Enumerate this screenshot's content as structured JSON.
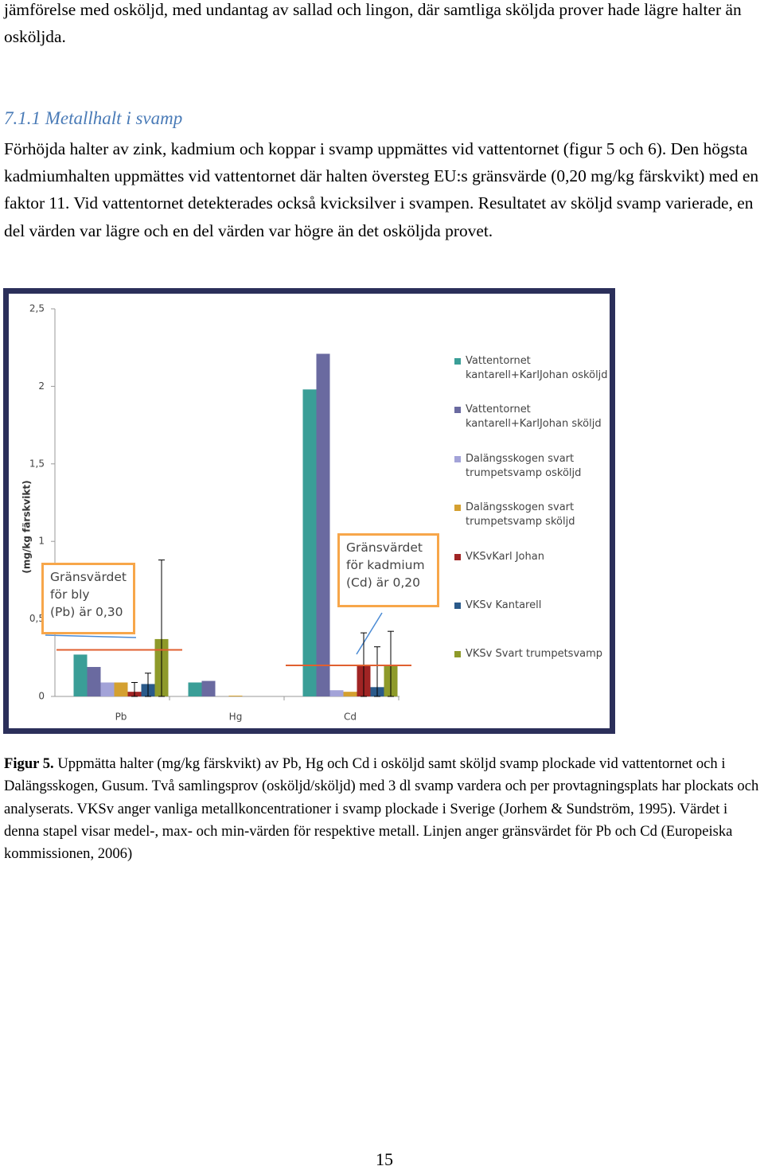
{
  "paragraph_1": "jämförelse med osköljd, med undantag av sallad och lingon, där samtliga sköljda prover hade lägre halter än osköljda.",
  "heading": "7.1.1 Metallhalt i svamp",
  "paragraph_2": "Förhöjda halter av zink, kadmium och koppar i svamp uppmättes vid vattentornet (figur 5 och 6). Den högsta kadmiumhalten uppmättes vid vattentornet där halten översteg EU:s gränsvärde (0,20 mg/kg färskvikt) med en faktor 11. Vid vattentornet detekterades också kvicksilver i svampen. Resultatet av sköljd svamp varierade, en del värden var lägre och en del värden var högre än det osköljda provet.",
  "chart_data": {
    "type": "bar",
    "y_label": "(mg/kg färskvikt)",
    "categories": [
      "Pb",
      "Hg",
      "Cd"
    ],
    "ylim": [
      0,
      2.5
    ],
    "yticks": [
      0,
      {
        "value": 0.5,
        "label": "0,5"
      },
      1,
      {
        "value": 1.5,
        "label": "1,5"
      },
      2,
      {
        "value": 2.5,
        "label": "2,5"
      }
    ],
    "series": [
      {
        "name": "Vattentornet kantarell+KarlJohan osköljd",
        "color": "#3a9e97",
        "values": [
          0.27,
          0.09,
          1.98
        ]
      },
      {
        "name": "Vattentornet kantarell+KarlJohan sköljd",
        "color": "#6a6aa0",
        "values": [
          0.19,
          0.1,
          2.21
        ]
      },
      {
        "name": "Dalängsskogen svart trumpetsvamp osköljd",
        "color": "#a3a3d8",
        "values": [
          0.09,
          0,
          0.04
        ]
      },
      {
        "name": "Dalängsskogen svart trumpetsvamp sköljd",
        "color": "#d4a030",
        "values": [
          0.09,
          0.005,
          0.03
        ]
      },
      {
        "name": "VKSvKarl Johan",
        "color": "#a02424",
        "values": [
          0.03,
          0,
          0.2
        ],
        "min": [
          0,
          0,
          0
        ],
        "max": [
          0.09,
          0,
          0.41
        ]
      },
      {
        "name": "VKSv Kantarell",
        "color": "#2a5a8a",
        "values": [
          0.08,
          0,
          0.06
        ],
        "min": [
          0,
          0,
          0
        ],
        "max": [
          0.15,
          0,
          0.32
        ]
      },
      {
        "name": "VKSv Svart trumpetsvamp",
        "color": "#8e9a2a",
        "values": [
          0.37,
          0,
          0.2
        ],
        "min": [
          0,
          0,
          0
        ],
        "max": [
          0.88,
          0,
          0.42
        ]
      }
    ],
    "limit_lines": [
      {
        "category": "Pb",
        "value": 0.3
      },
      {
        "category": "Cd",
        "value": 0.2
      }
    ],
    "annotations": [
      [
        "Gränsvärdet",
        "för bly",
        "(Pb) är 0,30"
      ],
      [
        "Gränsvärdet",
        "för kadmium",
        "(Cd) är 0,20"
      ]
    ]
  },
  "caption": {
    "label": "Figur 5.",
    "text": "Uppmätta halter (mg/kg färskvikt) av Pb, Hg och Cd i osköljd samt sköljd svamp plockade vid vattentornet och i Dalängsskogen, Gusum. Två samlingsprov (osköljd/sköljd) med 3 dl svamp vardera och per provtagningsplats har plockats och analyserats. VKSv anger vanliga metallkoncentrationer i svamp plockade i Sverige (Jorhem & Sundström, 1995). Värdet i denna stapel visar medel-, max- och min-värden för respektive metall. Linjen anger gränsvärdet för Pb och Cd (Europeiska kommissionen, 2006)"
  },
  "page_number": "15"
}
